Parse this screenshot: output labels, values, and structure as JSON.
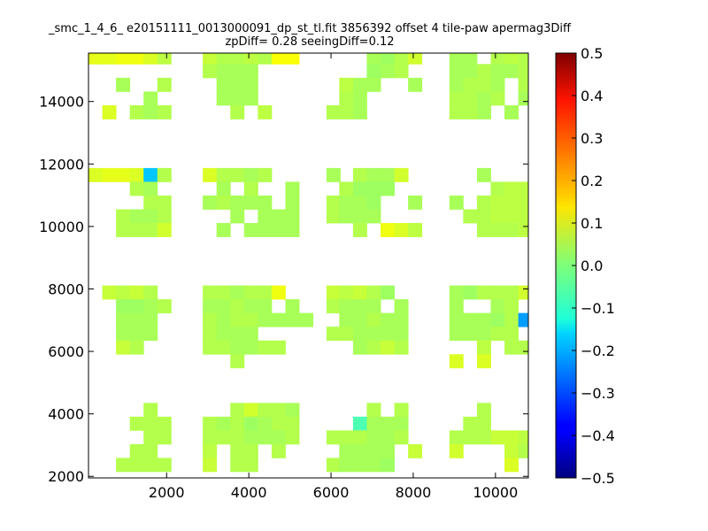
{
  "chart_data": {
    "type": "heatmap",
    "title": "_smc_1_4_6_ e20151111_0013000091_dp_st_tl.fit 3856392 offset 4 tile-paw apermag3Diff",
    "subtitle": "zpDiff= 0.28 seeingDiff=0.12",
    "xlabel": "",
    "ylabel": "",
    "xlim": [
      100,
      10800
    ],
    "ylim": [
      1950,
      15550
    ],
    "x_ticks": [
      "2000",
      "4000",
      "6000",
      "8000",
      "10000"
    ],
    "y_ticks": [
      "2000",
      "4000",
      "6000",
      "8000",
      "10000",
      "12000",
      "14000"
    ],
    "colorbar": {
      "colormap": "jet",
      "range": [
        -0.5,
        0.5
      ],
      "ticks": [
        "0.5",
        "0.4",
        "0.3",
        "0.2",
        "0.1",
        "0.0",
        "−0.1",
        "−0.2",
        "−0.3",
        "−0.4",
        "−0.5"
      ]
    },
    "cell_size": [
      335,
      440
    ],
    "cells": [
      [
        100,
        15200,
        0.1
      ],
      [
        435,
        15200,
        0.1
      ],
      [
        770,
        15200,
        0.11
      ],
      [
        1105,
        15200,
        0.11
      ],
      [
        1440,
        15200,
        0.09
      ],
      [
        1775,
        15200,
        0.06
      ],
      [
        2880,
        15200,
        0.07
      ],
      [
        3215,
        15200,
        0.05
      ],
      [
        3550,
        15200,
        0.05
      ],
      [
        3885,
        15200,
        0.06
      ],
      [
        4220,
        15200,
        0.05
      ],
      [
        4555,
        15200,
        0.12
      ],
      [
        4890,
        15200,
        0.12
      ],
      [
        6870,
        15200,
        0.04
      ],
      [
        7205,
        15200,
        0.03
      ],
      [
        7540,
        15200,
        0.05
      ],
      [
        7875,
        15200,
        0.08
      ],
      [
        8880,
        15200,
        0.04
      ],
      [
        9215,
        15200,
        0.04
      ],
      [
        9885,
        15200,
        0.05
      ],
      [
        10220,
        15200,
        0.06
      ],
      [
        10555,
        15200,
        0.05
      ],
      [
        2880,
        14760,
        0.05
      ],
      [
        3215,
        14760,
        0.04
      ],
      [
        3550,
        14760,
        0.04
      ],
      [
        3885,
        14760,
        0.04
      ],
      [
        6870,
        14760,
        0.03
      ],
      [
        7205,
        14760,
        0.04
      ],
      [
        7540,
        14760,
        0.05
      ],
      [
        8880,
        14760,
        0.04
      ],
      [
        9215,
        14760,
        0.04
      ],
      [
        9550,
        14760,
        0.05
      ],
      [
        9885,
        14760,
        0.04
      ],
      [
        10220,
        14760,
        0.04
      ],
      [
        10555,
        14760,
        0.05
      ],
      [
        770,
        14320,
        0.04
      ],
      [
        1775,
        14320,
        0.05
      ],
      [
        3215,
        14320,
        0.04
      ],
      [
        3550,
        14320,
        0.04
      ],
      [
        3885,
        14320,
        0.04
      ],
      [
        6200,
        14320,
        0.06
      ],
      [
        6535,
        14320,
        0.04
      ],
      [
        6870,
        14320,
        0.04
      ],
      [
        7875,
        14320,
        0.04
      ],
      [
        8880,
        14320,
        0.04
      ],
      [
        9215,
        14320,
        0.05
      ],
      [
        9550,
        14320,
        0.05
      ],
      [
        9885,
        14320,
        0.04
      ],
      [
        10555,
        14320,
        0.05
      ],
      [
        1440,
        13880,
        0.04
      ],
      [
        3215,
        13880,
        0.04
      ],
      [
        3550,
        13880,
        0.04
      ],
      [
        3885,
        13880,
        0.04
      ],
      [
        6200,
        13880,
        0.05
      ],
      [
        6535,
        13880,
        0.04
      ],
      [
        8880,
        13880,
        0.05
      ],
      [
        9215,
        13880,
        0.05
      ],
      [
        9550,
        13880,
        0.04
      ],
      [
        9885,
        13880,
        0.05
      ],
      [
        10555,
        13880,
        0.04
      ],
      [
        435,
        13440,
        0.09
      ],
      [
        1105,
        13440,
        0.05
      ],
      [
        1440,
        13440,
        0.04
      ],
      [
        1775,
        13440,
        0.05
      ],
      [
        3550,
        13440,
        0.05
      ],
      [
        4220,
        13440,
        0.06
      ],
      [
        5890,
        13440,
        0.05
      ],
      [
        6200,
        13440,
        0.05
      ],
      [
        6535,
        13440,
        0.04
      ],
      [
        8880,
        13440,
        0.05
      ],
      [
        9215,
        13440,
        0.05
      ],
      [
        9550,
        13440,
        0.04
      ],
      [
        10220,
        13440,
        0.04
      ],
      [
        100,
        11430,
        0.09
      ],
      [
        435,
        11430,
        0.1
      ],
      [
        770,
        11430,
        0.1
      ],
      [
        1105,
        11430,
        0.09
      ],
      [
        1440,
        11430,
        -0.18
      ],
      [
        1775,
        11430,
        0.05
      ],
      [
        2880,
        11430,
        0.09
      ],
      [
        3215,
        11430,
        0.05
      ],
      [
        3550,
        11430,
        0.05
      ],
      [
        3885,
        11430,
        0.04
      ],
      [
        4220,
        11430,
        0.05
      ],
      [
        5890,
        11430,
        0.04
      ],
      [
        6535,
        11430,
        0.05
      ],
      [
        6870,
        11430,
        0.04
      ],
      [
        7205,
        11430,
        0.04
      ],
      [
        7540,
        11430,
        0.08
      ],
      [
        9550,
        11430,
        0.04
      ],
      [
        1105,
        10990,
        0.05
      ],
      [
        1440,
        10990,
        0.04
      ],
      [
        3215,
        10990,
        0.04
      ],
      [
        3885,
        10990,
        0.05
      ],
      [
        4890,
        10990,
        0.04
      ],
      [
        6200,
        10990,
        0.05
      ],
      [
        6535,
        10990,
        0.03
      ],
      [
        6870,
        10990,
        0.03
      ],
      [
        7205,
        10990,
        0.03
      ],
      [
        9885,
        10990,
        0.05
      ],
      [
        10220,
        10990,
        0.06
      ],
      [
        10555,
        10990,
        0.06
      ],
      [
        1440,
        10550,
        0.05
      ],
      [
        1775,
        10550,
        0.05
      ],
      [
        2880,
        10550,
        0.04
      ],
      [
        3215,
        10550,
        0.05
      ],
      [
        3550,
        10550,
        0.04
      ],
      [
        3885,
        10550,
        0.04
      ],
      [
        4220,
        10550,
        0.04
      ],
      [
        4890,
        10550,
        0.04
      ],
      [
        5890,
        10550,
        0.05
      ],
      [
        6200,
        10550,
        0.04
      ],
      [
        6535,
        10550,
        0.04
      ],
      [
        6870,
        10550,
        0.03
      ],
      [
        7875,
        10550,
        0.04
      ],
      [
        8880,
        10550,
        0.04
      ],
      [
        9550,
        10550,
        0.05
      ],
      [
        9885,
        10550,
        0.06
      ],
      [
        10220,
        10550,
        0.06
      ],
      [
        10555,
        10550,
        0.06
      ],
      [
        770,
        10110,
        0.05
      ],
      [
        1105,
        10110,
        0.04
      ],
      [
        1440,
        10110,
        0.04
      ],
      [
        1775,
        10110,
        0.05
      ],
      [
        3550,
        10110,
        0.04
      ],
      [
        4220,
        10110,
        0.04
      ],
      [
        4555,
        10110,
        0.04
      ],
      [
        4890,
        10110,
        0.04
      ],
      [
        5890,
        10110,
        0.05
      ],
      [
        6200,
        10110,
        0.04
      ],
      [
        6535,
        10110,
        0.04
      ],
      [
        6870,
        10110,
        0.04
      ],
      [
        9215,
        10110,
        0.05
      ],
      [
        9550,
        10110,
        0.05
      ],
      [
        9885,
        10110,
        0.06
      ],
      [
        10220,
        10110,
        0.06
      ],
      [
        10555,
        10110,
        0.06
      ],
      [
        770,
        9670,
        0.05
      ],
      [
        1105,
        9670,
        0.05
      ],
      [
        1440,
        9670,
        0.05
      ],
      [
        1775,
        9670,
        0.08
      ],
      [
        3215,
        9670,
        0.04
      ],
      [
        3885,
        9670,
        0.04
      ],
      [
        4220,
        9670,
        0.04
      ],
      [
        4555,
        9670,
        0.04
      ],
      [
        4890,
        9670,
        0.04
      ],
      [
        6535,
        9670,
        0.05
      ],
      [
        7205,
        9670,
        0.11
      ],
      [
        7540,
        9670,
        0.09
      ],
      [
        7875,
        9670,
        0.06
      ],
      [
        9550,
        9670,
        0.05
      ],
      [
        9885,
        9670,
        0.05
      ],
      [
        10220,
        9670,
        0.05
      ],
      [
        10555,
        9670,
        0.06
      ],
      [
        435,
        7670,
        0.07
      ],
      [
        770,
        7670,
        0.06
      ],
      [
        1105,
        7670,
        0.07
      ],
      [
        1440,
        7670,
        0.05
      ],
      [
        2880,
        7670,
        0.05
      ],
      [
        3215,
        7670,
        0.05
      ],
      [
        3550,
        7670,
        0.04
      ],
      [
        3885,
        7670,
        0.05
      ],
      [
        4220,
        7670,
        0.05
      ],
      [
        4555,
        7670,
        0.11
      ],
      [
        5890,
        7670,
        0.07
      ],
      [
        6200,
        7670,
        0.06
      ],
      [
        6535,
        7670,
        0.07
      ],
      [
        6870,
        7670,
        0.05
      ],
      [
        7205,
        7670,
        0.03
      ],
      [
        8880,
        7670,
        0.04
      ],
      [
        9215,
        7670,
        0.03
      ],
      [
        9550,
        7670,
        0.05
      ],
      [
        9885,
        7670,
        0.05
      ],
      [
        10220,
        7670,
        0.05
      ],
      [
        10555,
        7670,
        0.08
      ],
      [
        770,
        7230,
        0.03
      ],
      [
        1105,
        7230,
        0.03
      ],
      [
        1440,
        7230,
        0.04
      ],
      [
        1775,
        7230,
        0.05
      ],
      [
        2880,
        7230,
        0.04
      ],
      [
        3215,
        7230,
        0.04
      ],
      [
        3550,
        7230,
        0.05
      ],
      [
        3885,
        7230,
        0.04
      ],
      [
        4220,
        7230,
        0.04
      ],
      [
        4890,
        7230,
        0.04
      ],
      [
        5890,
        7230,
        0.05
      ],
      [
        6200,
        7230,
        0.04
      ],
      [
        6535,
        7230,
        0.04
      ],
      [
        6870,
        7230,
        0.04
      ],
      [
        7540,
        7230,
        0.04
      ],
      [
        8880,
        7230,
        0.04
      ],
      [
        9885,
        7230,
        0.04
      ],
      [
        10220,
        7230,
        0.05
      ],
      [
        770,
        6790,
        0.04
      ],
      [
        1105,
        6790,
        0.04
      ],
      [
        1440,
        6790,
        0.04
      ],
      [
        2880,
        6790,
        0.05
      ],
      [
        3215,
        6790,
        0.04
      ],
      [
        3550,
        6790,
        0.05
      ],
      [
        3885,
        6790,
        0.05
      ],
      [
        4220,
        6790,
        0.04
      ],
      [
        4555,
        6790,
        0.04
      ],
      [
        4890,
        6790,
        0.04
      ],
      [
        5225,
        6790,
        0.04
      ],
      [
        6200,
        6790,
        0.04
      ],
      [
        6535,
        6790,
        0.04
      ],
      [
        6870,
        6790,
        0.05
      ],
      [
        7205,
        6790,
        0.04
      ],
      [
        7540,
        6790,
        0.04
      ],
      [
        8880,
        6790,
        0.04
      ],
      [
        9215,
        6790,
        0.04
      ],
      [
        9550,
        6790,
        0.04
      ],
      [
        9885,
        6790,
        0.03
      ],
      [
        10220,
        6790,
        0.05
      ],
      [
        10555,
        6790,
        -0.22
      ],
      [
        770,
        6350,
        0.04
      ],
      [
        1105,
        6350,
        0.04
      ],
      [
        1440,
        6350,
        0.04
      ],
      [
        2880,
        6350,
        0.05
      ],
      [
        3215,
        6350,
        0.04
      ],
      [
        3550,
        6350,
        0.04
      ],
      [
        3885,
        6350,
        0.04
      ],
      [
        5890,
        6350,
        0.05
      ],
      [
        6200,
        6350,
        0.05
      ],
      [
        6535,
        6350,
        0.04
      ],
      [
        6870,
        6350,
        0.04
      ],
      [
        7205,
        6350,
        0.04
      ],
      [
        7540,
        6350,
        0.04
      ],
      [
        8880,
        6350,
        0.04
      ],
      [
        9215,
        6350,
        0.04
      ],
      [
        9550,
        6350,
        0.04
      ],
      [
        9885,
        6350,
        0.05
      ],
      [
        10220,
        6350,
        0.05
      ],
      [
        770,
        5910,
        0.07
      ],
      [
        1105,
        5910,
        0.05
      ],
      [
        2880,
        5910,
        0.05
      ],
      [
        3215,
        5910,
        0.05
      ],
      [
        3550,
        5910,
        0.04
      ],
      [
        3885,
        5910,
        0.04
      ],
      [
        4220,
        5910,
        0.05
      ],
      [
        4555,
        5910,
        0.05
      ],
      [
        6535,
        5910,
        0.04
      ],
      [
        6870,
        5910,
        0.05
      ],
      [
        7205,
        5910,
        0.07
      ],
      [
        7540,
        5910,
        0.05
      ],
      [
        9550,
        5910,
        0.06
      ],
      [
        10220,
        5910,
        0.05
      ],
      [
        10555,
        5910,
        0.05
      ],
      [
        3550,
        5470,
        0.05
      ],
      [
        8880,
        5470,
        0.09
      ],
      [
        9550,
        5470,
        0.09
      ],
      [
        1440,
        3910,
        0.05
      ],
      [
        3550,
        3910,
        0.05
      ],
      [
        3885,
        3910,
        0.08
      ],
      [
        4220,
        3910,
        0.05
      ],
      [
        4555,
        3910,
        0.05
      ],
      [
        4890,
        3910,
        0.04
      ],
      [
        6870,
        3910,
        0.05
      ],
      [
        7540,
        3910,
        0.05
      ],
      [
        9550,
        3910,
        0.05
      ],
      [
        1105,
        3470,
        0.05
      ],
      [
        1440,
        3470,
        0.05
      ],
      [
        1775,
        3470,
        0.05
      ],
      [
        2880,
        3470,
        0.05
      ],
      [
        3215,
        3470,
        0.04
      ],
      [
        3550,
        3470,
        0.05
      ],
      [
        3885,
        3470,
        0.03
      ],
      [
        4220,
        3470,
        0.04
      ],
      [
        4555,
        3470,
        0.05
      ],
      [
        4890,
        3470,
        0.05
      ],
      [
        6535,
        3470,
        -0.05
      ],
      [
        6870,
        3470,
        0.04
      ],
      [
        7205,
        3470,
        0.04
      ],
      [
        7540,
        3470,
        0.04
      ],
      [
        9215,
        3470,
        0.05
      ],
      [
        9550,
        3470,
        0.05
      ],
      [
        1440,
        3030,
        0.05
      ],
      [
        1775,
        3030,
        0.05
      ],
      [
        2880,
        3030,
        0.05
      ],
      [
        3215,
        3030,
        0.05
      ],
      [
        3550,
        3030,
        0.05
      ],
      [
        3885,
        3030,
        0.04
      ],
      [
        4220,
        3030,
        0.04
      ],
      [
        4555,
        3030,
        0.04
      ],
      [
        4890,
        3030,
        0.05
      ],
      [
        5890,
        3030,
        0.05
      ],
      [
        6200,
        3030,
        0.05
      ],
      [
        6535,
        3030,
        0.05
      ],
      [
        6870,
        3030,
        0.04
      ],
      [
        7205,
        3030,
        0.04
      ],
      [
        7540,
        3030,
        0.05
      ],
      [
        8880,
        3030,
        0.05
      ],
      [
        9215,
        3030,
        0.05
      ],
      [
        9550,
        3030,
        0.05
      ],
      [
        9885,
        3030,
        0.07
      ],
      [
        10220,
        3030,
        0.07
      ],
      [
        10555,
        3030,
        0.06
      ],
      [
        1105,
        2590,
        0.05
      ],
      [
        1440,
        2590,
        0.05
      ],
      [
        2880,
        2590,
        0.06
      ],
      [
        3550,
        2590,
        0.05
      ],
      [
        3885,
        2590,
        0.05
      ],
      [
        4555,
        2590,
        0.05
      ],
      [
        6200,
        2590,
        0.04
      ],
      [
        6535,
        2590,
        0.04
      ],
      [
        6870,
        2590,
        0.04
      ],
      [
        7205,
        2590,
        0.04
      ],
      [
        7875,
        2590,
        0.07
      ],
      [
        8880,
        2590,
        0.08
      ],
      [
        10220,
        2590,
        0.07
      ],
      [
        10555,
        2590,
        0.05
      ],
      [
        770,
        2150,
        0.05
      ],
      [
        1105,
        2150,
        0.05
      ],
      [
        1440,
        2150,
        0.05
      ],
      [
        1775,
        2150,
        0.05
      ],
      [
        2880,
        2150,
        0.07
      ],
      [
        3550,
        2150,
        0.05
      ],
      [
        3885,
        2150,
        0.05
      ],
      [
        5890,
        2150,
        0.05
      ],
      [
        6200,
        2150,
        0.04
      ],
      [
        6535,
        2150,
        0.04
      ],
      [
        6870,
        2150,
        0.04
      ],
      [
        7205,
        2150,
        0.03
      ],
      [
        10220,
        2150,
        0.09
      ]
    ]
  }
}
